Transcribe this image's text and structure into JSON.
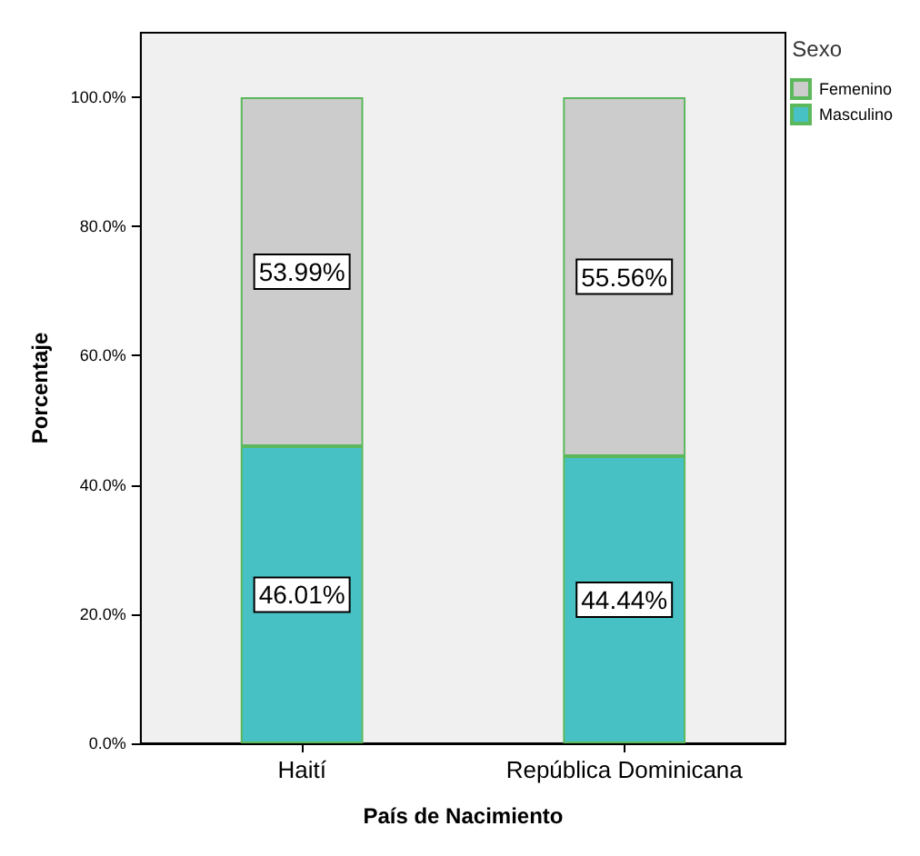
{
  "chart_data": {
    "type": "bar",
    "stacked": true,
    "categories": [
      "Haití",
      "República Dominicana"
    ],
    "series": [
      {
        "name": "Masculino",
        "color": "#48c1c4",
        "values": [
          46.01,
          44.44
        ],
        "value_labels": [
          "46.01%",
          "44.44%"
        ]
      },
      {
        "name": "Femenino",
        "color": "#cccccc",
        "values": [
          53.99,
          55.56
        ],
        "value_labels": [
          "53.99%",
          "55.56%"
        ]
      }
    ],
    "xlabel": "País de Nacimiento",
    "ylabel": "Porcentaje",
    "legend_title": "Sexo",
    "legend": "top right",
    "grid": false,
    "ylim": [
      0,
      110
    ],
    "yticks": [
      {
        "value": 0,
        "label": "0.0%"
      },
      {
        "value": 20,
        "label": "20.0%"
      },
      {
        "value": 40,
        "label": "40.0%"
      },
      {
        "value": 60,
        "label": "60.0%"
      },
      {
        "value": 80,
        "label": "80.0%"
      },
      {
        "value": 100,
        "label": "100.0%"
      }
    ]
  }
}
